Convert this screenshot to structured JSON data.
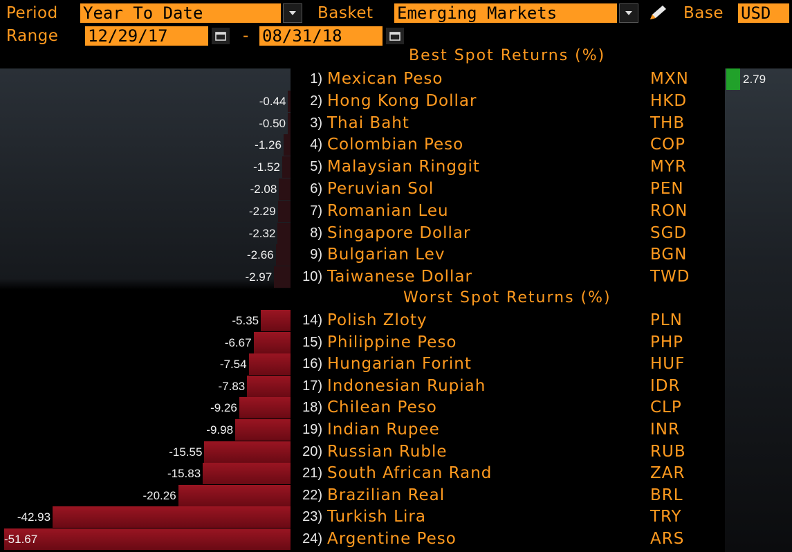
{
  "controls": {
    "period_label": "Period",
    "period_value": "Year To Date",
    "basket_label": "Basket",
    "basket_value": "Emerging Markets",
    "base_label": "Base",
    "base_value": "USD",
    "range_label": "Range",
    "range_start": "12/29/17",
    "range_separator": "-",
    "range_end": "08/31/18"
  },
  "best": {
    "title": "Best Spot Returns (%)",
    "rows": [
      {
        "rank": "1)",
        "name": "Mexican Peso",
        "code": "MXN",
        "value": "2.79",
        "num": 2.79
      },
      {
        "rank": "2)",
        "name": "Hong Kong Dollar",
        "code": "HKD",
        "value": "-0.44",
        "num": -0.44
      },
      {
        "rank": "3)",
        "name": "Thai Baht",
        "code": "THB",
        "value": "-0.50",
        "num": -0.5
      },
      {
        "rank": "4)",
        "name": "Colombian Peso",
        "code": "COP",
        "value": "-1.26",
        "num": -1.26
      },
      {
        "rank": "5)",
        "name": "Malaysian Ringgit",
        "code": "MYR",
        "value": "-1.52",
        "num": -1.52
      },
      {
        "rank": "6)",
        "name": "Peruvian Sol",
        "code": "PEN",
        "value": "-2.08",
        "num": -2.08
      },
      {
        "rank": "7)",
        "name": "Romanian Leu",
        "code": "RON",
        "value": "-2.29",
        "num": -2.29
      },
      {
        "rank": "8)",
        "name": "Singapore Dollar",
        "code": "SGD",
        "value": "-2.32",
        "num": -2.32
      },
      {
        "rank": "9)",
        "name": "Bulgarian Lev",
        "code": "BGN",
        "value": "-2.66",
        "num": -2.66
      },
      {
        "rank": "10)",
        "name": "Taiwanese Dollar",
        "code": "TWD",
        "value": "-2.97",
        "num": -2.97
      }
    ]
  },
  "worst": {
    "title": "Worst Spot Returns (%)",
    "rows": [
      {
        "rank": "14)",
        "name": "Polish Zloty",
        "code": "PLN",
        "value": "-5.35",
        "num": -5.35
      },
      {
        "rank": "15)",
        "name": "Philippine Peso",
        "code": "PHP",
        "value": "-6.67",
        "num": -6.67
      },
      {
        "rank": "16)",
        "name": "Hungarian Forint",
        "code": "HUF",
        "value": "-7.54",
        "num": -7.54
      },
      {
        "rank": "17)",
        "name": "Indonesian Rupiah",
        "code": "IDR",
        "value": "-7.83",
        "num": -7.83
      },
      {
        "rank": "18)",
        "name": "Chilean Peso",
        "code": "CLP",
        "value": "-9.26",
        "num": -9.26
      },
      {
        "rank": "19)",
        "name": "Indian Rupee",
        "code": "INR",
        "value": "-9.98",
        "num": -9.98
      },
      {
        "rank": "20)",
        "name": "Russian Ruble",
        "code": "RUB",
        "value": "-15.55",
        "num": -15.55
      },
      {
        "rank": "21)",
        "name": "South African Rand",
        "code": "ZAR",
        "value": "-15.83",
        "num": -15.83
      },
      {
        "rank": "22)",
        "name": "Brazilian Real",
        "code": "BRL",
        "value": "-20.26",
        "num": -20.26
      },
      {
        "rank": "23)",
        "name": "Turkish Lira",
        "code": "TRY",
        "value": "-42.93",
        "num": -42.93
      },
      {
        "rank": "24)",
        "name": "Argentine Peso",
        "code": "ARS",
        "value": "-51.67",
        "num": -51.67
      }
    ]
  },
  "icons": {
    "dropdown": "chevron-down-icon",
    "calendar": "calendar-icon",
    "edit": "pencil-icon"
  },
  "colors": {
    "accent": "#ff9a1f",
    "negative_bar": "#8b1020",
    "positive_bar": "#21a12a",
    "background": "#000000"
  }
}
